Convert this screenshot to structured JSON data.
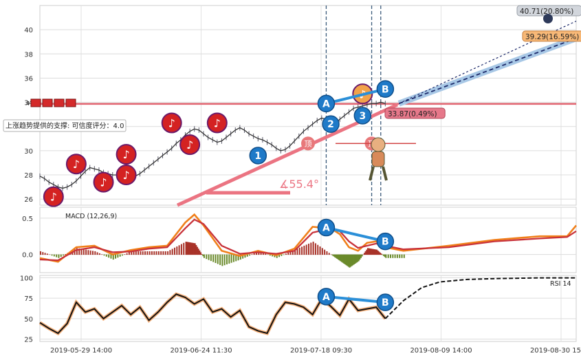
{
  "chart_data": [
    {
      "type": "line",
      "panel": "price",
      "title": "",
      "ylim": [
        25.5,
        42
      ],
      "ytick_labels": [
        "26",
        "28",
        "30",
        "32",
        "34",
        "36",
        "38",
        "40"
      ],
      "grid": true,
      "x_dates": [
        "2019-05-29 14:00",
        "2019-06-24 11:30",
        "2019-07-18 09:30",
        "2019-08-09 14:00",
        "2019-08-30 15:00"
      ],
      "series": [
        {
          "kind": "price",
          "x": [
            0,
            0.5,
            1,
            1.5,
            2,
            2.5,
            3,
            3.5,
            4,
            4.5,
            5,
            5.5,
            6,
            6.5,
            7,
            7.5,
            8,
            8.5,
            9,
            9.5,
            10,
            10.5,
            11,
            11.5,
            12,
            12.5,
            13,
            13.5,
            14,
            14.5,
            15,
            15.5,
            16,
            16.5,
            17,
            17.5,
            18,
            18.5,
            19,
            19.5,
            20,
            20.5,
            21,
            21.5,
            22,
            22.5,
            23,
            23.5,
            24,
            24.5,
            25,
            25.5,
            26,
            26.5,
            27,
            27.5,
            28,
            28.5,
            29,
            29.5,
            30,
            30.5,
            31,
            31.5,
            32,
            32.5,
            33,
            33.5,
            34,
            34.5,
            35,
            35.5,
            36,
            36.5,
            37,
            37.5,
            38,
            38.5,
            39,
            39.5,
            40,
            40.5,
            41,
            41.5,
            42,
            42.5,
            43,
            43.5,
            44,
            44.5,
            45,
            45.5,
            46,
            46.5,
            47,
            47.5,
            48,
            48.5,
            49,
            49.5,
            50,
            50.5,
            51,
            51.5,
            52,
            52.5,
            53,
            53.5,
            54,
            54.5,
            55,
            55.5,
            56,
            56.5,
            57,
            57.5,
            58,
            58.5,
            59
          ],
          "y": [
            27.9,
            27.7,
            27.4,
            27.2,
            27.0,
            26.9,
            27.0,
            27.2,
            27.5,
            27.9,
            28.3,
            28.6,
            28.5,
            28.4,
            28.2,
            28.1,
            28.0,
            28.0,
            28.2,
            28.1,
            28.0,
            27.9,
            28.1,
            28.4,
            28.7,
            29.0,
            29.3,
            29.6,
            29.9,
            30.2,
            30.6,
            30.9,
            31.3,
            31.6,
            31.8,
            31.7,
            31.4,
            31.1,
            30.9,
            30.7,
            30.8,
            31.1,
            31.4,
            31.7,
            31.9,
            31.7,
            31.4,
            31.2,
            31.0,
            30.9,
            30.7,
            30.5,
            30.2,
            30.0,
            30.1,
            30.4,
            30.8,
            31.2,
            31.6,
            31.9,
            32.2,
            32.5,
            32.7,
            32.6,
            32.4,
            32.3,
            32.6,
            32.9,
            33.2,
            33.5,
            33.6,
            33.7,
            33.8,
            33.9,
            33.9,
            34.0,
            33.9,
            33.8,
            33.8,
            33.9,
            33.9,
            33.9,
            33.9,
            33.9,
            33.9,
            33.9,
            33.9,
            33.9,
            33.9,
            33.9,
            33.9,
            33.9,
            33.9,
            33.9,
            33.9,
            33.9,
            33.9,
            33.9,
            33.9,
            33.9,
            33.9,
            33.9,
            33.9,
            33.9,
            33.9,
            33.9,
            33.9,
            33.9,
            33.9,
            33.9,
            33.9,
            33.9,
            33.9,
            33.9,
            33.9,
            33.9,
            33.9,
            33.9,
            33.9
          ]
        },
        {
          "kind": "forecast",
          "x": [
            39.5,
            59
          ],
          "y": [
            33.9,
            39.29
          ]
        },
        {
          "kind": "forecast-upper",
          "x": [
            39.5,
            59
          ],
          "y": [
            33.9,
            40.71
          ]
        }
      ],
      "support_line_value": 33.87,
      "horizontal_line_value": 33.87,
      "annotations": [
        {
          "text": "上涨趋势提供的支撑: 可信度评分：4.0",
          "kind": "note"
        },
        {
          "text": "∡55.4°",
          "kind": "angle"
        },
        {
          "text": "33.87(0.49%)",
          "kind": "price-tag"
        },
        {
          "text": "39.29(16.59%)",
          "kind": "price-tag"
        },
        {
          "text": "40.71(20.80%)",
          "kind": "price-tag"
        }
      ],
      "wave_labels": [
        {
          "label": "1",
          "x": 24.0,
          "y": 29.6
        },
        {
          "label": "2",
          "x": 32.0,
          "y": 32.2
        },
        {
          "label": "3",
          "x": 35.5,
          "y": 32.9
        },
        {
          "label": "A",
          "x": 31.5,
          "y": 33.9
        },
        {
          "label": "B",
          "x": 38.0,
          "y": 35.1
        }
      ],
      "markers": [
        {
          "kind": "note",
          "x": 1.5,
          "y": 26.2
        },
        {
          "kind": "note",
          "x": 4.0,
          "y": 28.9
        },
        {
          "kind": "note",
          "x": 7.0,
          "y": 27.4
        },
        {
          "kind": "note",
          "x": 9.5,
          "y": 29.7
        },
        {
          "kind": "note",
          "x": 9.5,
          "y": 28.0
        },
        {
          "kind": "note",
          "x": 14.5,
          "y": 32.3
        },
        {
          "kind": "note",
          "x": 16.5,
          "y": 30.5
        },
        {
          "kind": "note",
          "x": 19.5,
          "y": 32.3
        },
        {
          "kind": "note-orange",
          "x": 35.5,
          "y": 34.7
        },
        {
          "kind": "top",
          "x": 29.5,
          "y": 30.6
        },
        {
          "kind": "top",
          "x": 36.5,
          "y": 30.6
        }
      ],
      "top_markers_label": "顶",
      "vertical_dashes_x": [
        31.5,
        36.5,
        37.5
      ]
    },
    {
      "type": "line",
      "panel": "macd",
      "title": "MACD (12,26,9)",
      "ylim": [
        -0.25,
        0.65
      ],
      "ytick_labels": [
        "0.0",
        "0.5"
      ],
      "grid": true,
      "series": [
        {
          "kind": "macd",
          "x": [
            0,
            2,
            4,
            6,
            8,
            10,
            12,
            14,
            16,
            17,
            18,
            20,
            22,
            24,
            26,
            28,
            30,
            32,
            33,
            34,
            35,
            36,
            37,
            38,
            40,
            45,
            50,
            55,
            58,
            59
          ],
          "y": [
            -0.05,
            -0.1,
            0.1,
            0.12,
            0.0,
            0.06,
            0.1,
            0.12,
            0.44,
            0.55,
            0.4,
            0.05,
            -0.02,
            0.05,
            -0.01,
            0.08,
            0.38,
            0.36,
            0.28,
            0.1,
            0.05,
            0.16,
            0.18,
            0.1,
            0.05,
            0.12,
            0.2,
            0.25,
            0.25,
            0.4
          ]
        },
        {
          "kind": "signal",
          "x": [
            0,
            2,
            4,
            6,
            8,
            10,
            12,
            14,
            16,
            17,
            18,
            20,
            22,
            24,
            26,
            28,
            30,
            32,
            33,
            34,
            35,
            36,
            37,
            38,
            40,
            45,
            50,
            55,
            58,
            59
          ],
          "y": [
            -0.07,
            -0.08,
            0.06,
            0.1,
            0.03,
            0.04,
            0.08,
            0.1,
            0.36,
            0.48,
            0.42,
            0.12,
            0.01,
            0.03,
            0.01,
            0.05,
            0.3,
            0.36,
            0.32,
            0.18,
            0.09,
            0.12,
            0.15,
            0.12,
            0.07,
            0.1,
            0.18,
            0.22,
            0.24,
            0.32
          ]
        }
      ],
      "wave_labels": [
        {
          "label": "A",
          "x": 31.5,
          "y": 0.37
        },
        {
          "label": "B",
          "x": 38.0,
          "y": 0.18
        }
      ]
    },
    {
      "type": "line",
      "panel": "rsi",
      "title": "RSI 14",
      "ylim": [
        22,
        103
      ],
      "ytick_labels": [
        "25",
        "50",
        "75",
        "100"
      ],
      "grid": true,
      "series": [
        {
          "kind": "rsi",
          "x": [
            0,
            1,
            2,
            3,
            4,
            5,
            6,
            7,
            8,
            9,
            10,
            11,
            12,
            13,
            14,
            15,
            16,
            17,
            18,
            19,
            20,
            21,
            22,
            23,
            24,
            25,
            26,
            27,
            28,
            29,
            30,
            31,
            32,
            33,
            34,
            35,
            36,
            37,
            38,
            40,
            42,
            44,
            47,
            50,
            55,
            58,
            59
          ],
          "y": [
            45,
            38,
            32,
            44,
            70,
            58,
            62,
            50,
            58,
            66,
            55,
            64,
            48,
            58,
            70,
            80,
            76,
            68,
            74,
            58,
            62,
            52,
            60,
            40,
            35,
            32,
            55,
            70,
            68,
            64,
            55,
            74,
            65,
            54,
            74,
            60,
            62,
            64,
            50,
            72,
            88,
            95,
            98,
            99,
            100,
            100,
            100
          ]
        }
      ],
      "wave_labels": [
        {
          "label": "A",
          "x": 31.5,
          "y": 77
        },
        {
          "label": "B",
          "x": 38.0,
          "y": 70
        }
      ]
    }
  ]
}
